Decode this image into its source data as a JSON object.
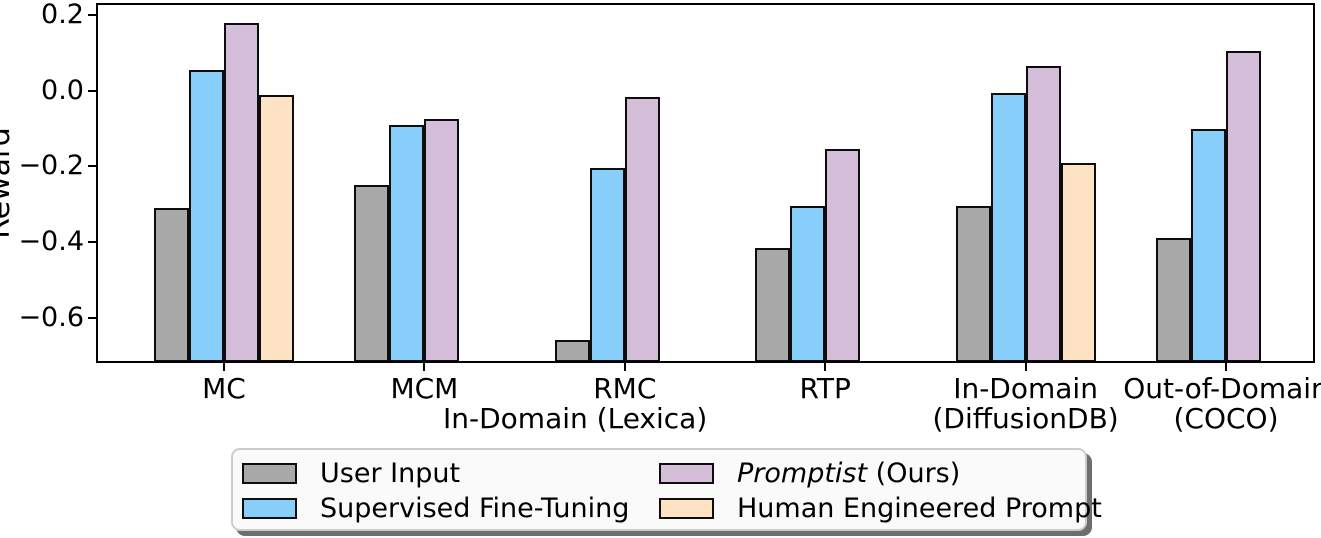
{
  "chart_data": {
    "type": "bar",
    "title": "",
    "ylabel": "Reward",
    "xlabel_annotation": "In-Domain (Lexica)",
    "categories": [
      "MC",
      "MCM",
      "RMC",
      "RTP",
      "In-Domain\n(DiffusionDB)",
      "Out-of-Domain\n(COCO)"
    ],
    "series": [
      {
        "name": "User Input",
        "color": "#a8a8a8",
        "values": [
          -0.31,
          -0.25,
          -0.66,
          -0.415,
          -0.305,
          -0.39
        ]
      },
      {
        "name": "Supervised Fine-Tuning",
        "color": "#87cefa",
        "values": [
          0.055,
          -0.09,
          -0.205,
          -0.305,
          -0.005,
          -0.1
        ]
      },
      {
        "name": "Promptist (Ours)",
        "color": "#d5bed9",
        "values": [
          0.18,
          -0.075,
          -0.015,
          -0.155,
          0.065,
          0.105
        ]
      },
      {
        "name": "Human Engineered Prompt",
        "color": "#fde3c3",
        "values": [
          -0.01,
          null,
          null,
          null,
          -0.19,
          null
        ]
      }
    ],
    "ylim": [
      -0.72,
      0.23
    ],
    "yticks": [
      0.2,
      0.0,
      -0.2,
      -0.4,
      -0.6
    ],
    "ytick_labels": [
      "0.2",
      "0.0",
      "−0.2",
      "−0.4",
      "−0.6"
    ],
    "grid": false,
    "legend_position": "bottom",
    "bar_edge_color": "#0d0d0d"
  },
  "legend": {
    "entries": [
      {
        "parts": [
          {
            "text": "User Input",
            "italic": false
          }
        ],
        "color": "#a8a8a8"
      },
      {
        "parts": [
          {
            "text": "Supervised Fine-Tuning",
            "italic": false
          }
        ],
        "color": "#87cefa"
      },
      {
        "parts": [
          {
            "text": "Promptist",
            "italic": true
          },
          {
            "text": " (Ours)",
            "italic": false
          }
        ],
        "color": "#d5bed9"
      },
      {
        "parts": [
          {
            "text": "Human Engineered Prompt",
            "italic": false
          }
        ],
        "color": "#fde3c3"
      }
    ]
  }
}
